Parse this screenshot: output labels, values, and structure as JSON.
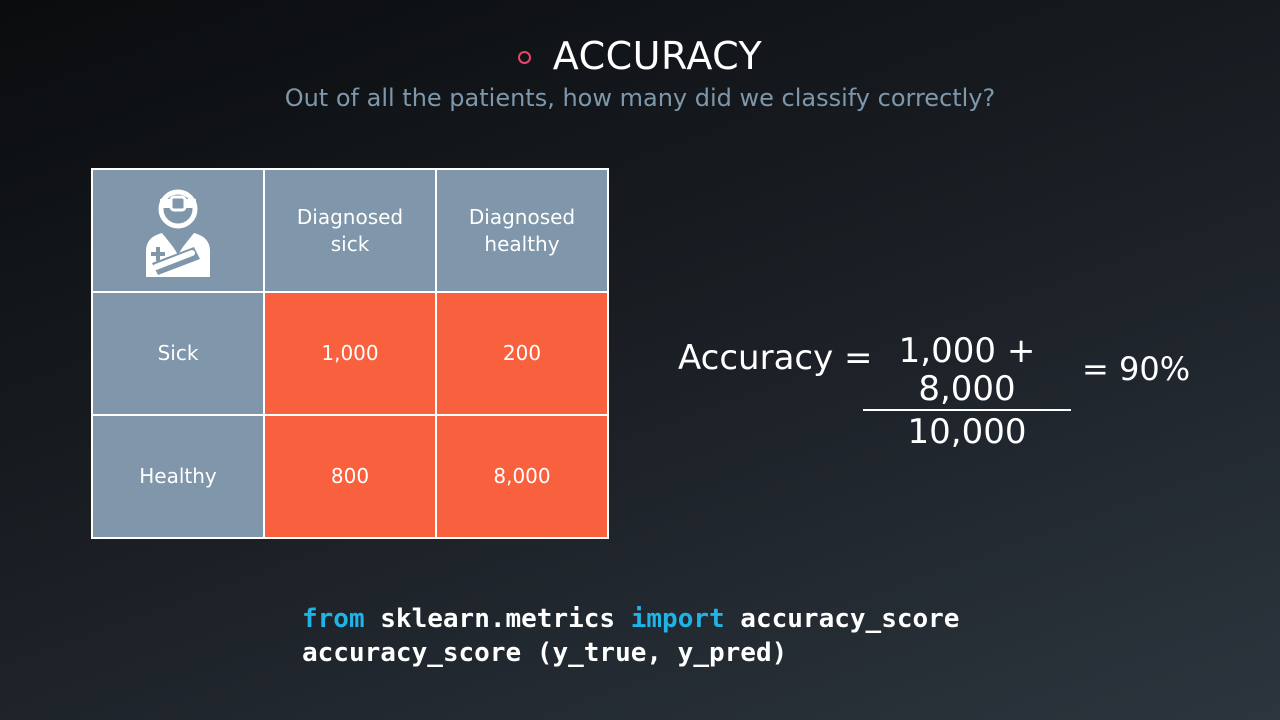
{
  "slide": {
    "title": "ACCURACY",
    "subtitle": "Out of all the patients, how many did we classify correctly?",
    "accent_color": "#e8466c"
  },
  "matrix": {
    "corner_icon": "doctor-icon",
    "col_headers": [
      "Diagnosed sick",
      "Diagnosed healthy"
    ],
    "rows": [
      {
        "label": "Sick",
        "values": [
          "1,000",
          "200"
        ]
      },
      {
        "label": "Healthy",
        "values": [
          "800",
          "8,000"
        ]
      }
    ],
    "header_color": "#7f96ab",
    "value_color": "#f8603e"
  },
  "formula": {
    "lhs": "Accuracy =",
    "numerator": "1,000 + 8,000",
    "denominator": "10,000",
    "result": "= 90%"
  },
  "code": {
    "line1_kw1": "from",
    "line1_mod": " sklearn.metrics ",
    "line1_kw2": "import",
    "line1_name": " accuracy_score",
    "line2": "accuracy_score (y_true, y_pred)",
    "keyword_color": "#1fb3e6"
  }
}
